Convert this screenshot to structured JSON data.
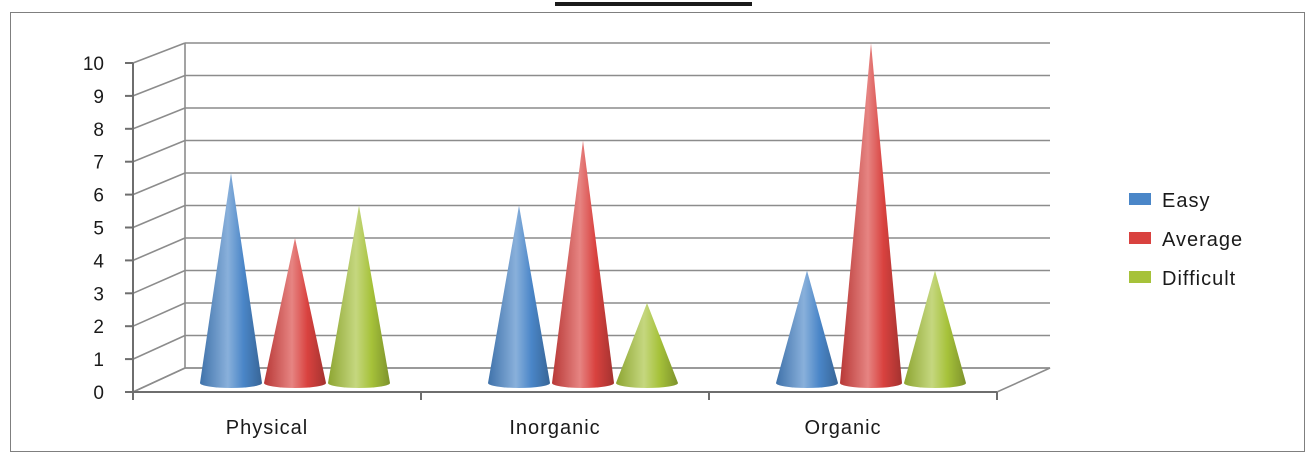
{
  "chart_data": {
    "type": "bar",
    "style": "3d-cone",
    "categories": [
      "Physical",
      "Inorganic",
      "Organic"
    ],
    "series": [
      {
        "name": "Easy",
        "values": [
          6,
          5,
          3
        ],
        "color": "#4a86c8"
      },
      {
        "name": "Average",
        "values": [
          4,
          7,
          10
        ],
        "color": "#d9423f"
      },
      {
        "name": "Difficult",
        "values": [
          5,
          2,
          3
        ],
        "color": "#a6c23a"
      }
    ],
    "ylim": [
      0,
      10
    ],
    "yticks": [
      "0",
      "1",
      "2",
      "3",
      "4",
      "5",
      "6",
      "7",
      "8",
      "9",
      "10"
    ],
    "title": "",
    "xlabel": "",
    "ylabel": "",
    "grid": true,
    "legend_position": "right"
  }
}
